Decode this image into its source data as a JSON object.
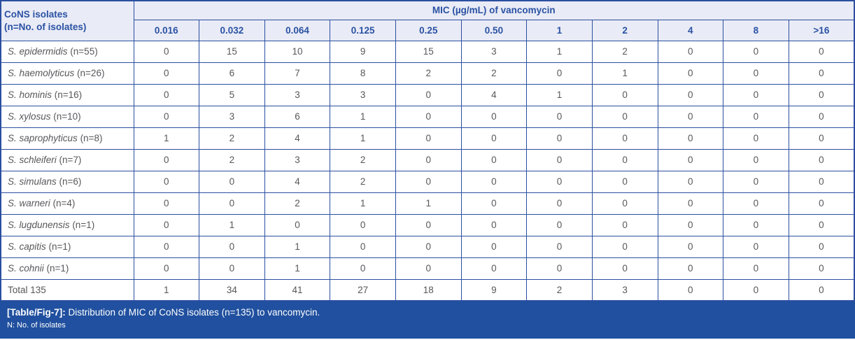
{
  "colors": {
    "border": "#2b4fa0",
    "header_bg": "#e9ebf6",
    "header_text": "#2a52a3",
    "caption_bg": "#20509f",
    "caption_text": "#ffffff",
    "cell_text": "#58585c",
    "cell_bg": "#ffffff"
  },
  "table": {
    "corner_header_line1": "CoNS isolates",
    "corner_header_line2": "(n=No. of isolates)",
    "mic_header": "MIC (µg/mL) of vancomycin",
    "mic_columns": [
      "0.016",
      "0.032",
      "0.064",
      "0.125",
      "0.25",
      "0.50",
      "1",
      "2",
      "4",
      "8",
      ">16"
    ],
    "rows": [
      {
        "species": "S. epidermidis",
        "n": "(n=55)",
        "values": [
          0,
          15,
          10,
          9,
          15,
          3,
          1,
          2,
          0,
          0,
          0
        ]
      },
      {
        "species": "S. haemolyticus",
        "n": "(n=26)",
        "values": [
          0,
          6,
          7,
          8,
          2,
          2,
          0,
          1,
          0,
          0,
          0
        ]
      },
      {
        "species": "S. hominis",
        "n": "(n=16)",
        "values": [
          0,
          5,
          3,
          3,
          0,
          4,
          1,
          0,
          0,
          0,
          0
        ]
      },
      {
        "species": "S. xylosus",
        "n": "(n=10)",
        "values": [
          0,
          3,
          6,
          1,
          0,
          0,
          0,
          0,
          0,
          0,
          0
        ]
      },
      {
        "species": "S. saprophyticus",
        "n": "(n=8)",
        "values": [
          1,
          2,
          4,
          1,
          0,
          0,
          0,
          0,
          0,
          0,
          0
        ]
      },
      {
        "species": "S. schleiferi",
        "n": "(n=7)",
        "values": [
          0,
          2,
          3,
          2,
          0,
          0,
          0,
          0,
          0,
          0,
          0
        ]
      },
      {
        "species": "S. simulans",
        "n": "(n=6)",
        "values": [
          0,
          0,
          4,
          2,
          0,
          0,
          0,
          0,
          0,
          0,
          0
        ]
      },
      {
        "species": "S. warneri",
        "n": "(n=4)",
        "values": [
          0,
          0,
          2,
          1,
          1,
          0,
          0,
          0,
          0,
          0,
          0
        ]
      },
      {
        "species": "S. lugdunensis",
        "n": "(n=1)",
        "values": [
          0,
          1,
          0,
          0,
          0,
          0,
          0,
          0,
          0,
          0,
          0
        ]
      },
      {
        "species": "S. capitis",
        "n": "(n=1)",
        "values": [
          0,
          0,
          1,
          0,
          0,
          0,
          0,
          0,
          0,
          0,
          0
        ]
      },
      {
        "species": "S. cohnii",
        "n": "(n=1)",
        "values": [
          0,
          0,
          1,
          0,
          0,
          0,
          0,
          0,
          0,
          0,
          0
        ]
      }
    ],
    "total_row": {
      "label": "Total 135",
      "values": [
        1,
        34,
        41,
        27,
        18,
        9,
        2,
        3,
        0,
        0,
        0
      ]
    }
  },
  "caption": {
    "tag": "[Table/Fig-7]:",
    "text": "Distribution of MIC of CoNS isolates (n=135) to vancomycin.",
    "note": "N: No. of isolates"
  },
  "chart_data": {
    "type": "table",
    "title": "Distribution of MIC of CoNS isolates (n=135) to vancomycin",
    "columns": [
      "CoNS isolates (n=No. of isolates)",
      "0.016",
      "0.032",
      "0.064",
      "0.125",
      "0.25",
      "0.50",
      "1",
      "2",
      "4",
      "8",
      ">16"
    ],
    "rows": [
      [
        "S. epidermidis (n=55)",
        0,
        15,
        10,
        9,
        15,
        3,
        1,
        2,
        0,
        0,
        0
      ],
      [
        "S. haemolyticus (n=26)",
        0,
        6,
        7,
        8,
        2,
        2,
        0,
        1,
        0,
        0,
        0
      ],
      [
        "S. hominis (n=16)",
        0,
        5,
        3,
        3,
        0,
        4,
        1,
        0,
        0,
        0,
        0
      ],
      [
        "S. xylosus (n=10)",
        0,
        3,
        6,
        1,
        0,
        0,
        0,
        0,
        0,
        0,
        0
      ],
      [
        "S. saprophyticus (n=8)",
        1,
        2,
        4,
        1,
        0,
        0,
        0,
        0,
        0,
        0,
        0
      ],
      [
        "S. schleiferi (n=7)",
        0,
        2,
        3,
        2,
        0,
        0,
        0,
        0,
        0,
        0,
        0
      ],
      [
        "S. simulans (n=6)",
        0,
        0,
        4,
        2,
        0,
        0,
        0,
        0,
        0,
        0,
        0
      ],
      [
        "S. warneri (n=4)",
        0,
        0,
        2,
        1,
        1,
        0,
        0,
        0,
        0,
        0,
        0
      ],
      [
        "S. lugdunensis (n=1)",
        0,
        1,
        0,
        0,
        0,
        0,
        0,
        0,
        0,
        0,
        0
      ],
      [
        "S. capitis (n=1)",
        0,
        0,
        1,
        0,
        0,
        0,
        0,
        0,
        0,
        0,
        0
      ],
      [
        "S. cohnii (n=1)",
        0,
        0,
        1,
        0,
        0,
        0,
        0,
        0,
        0,
        0,
        0
      ],
      [
        "Total 135",
        1,
        34,
        41,
        27,
        18,
        9,
        2,
        3,
        0,
        0,
        0
      ]
    ]
  }
}
